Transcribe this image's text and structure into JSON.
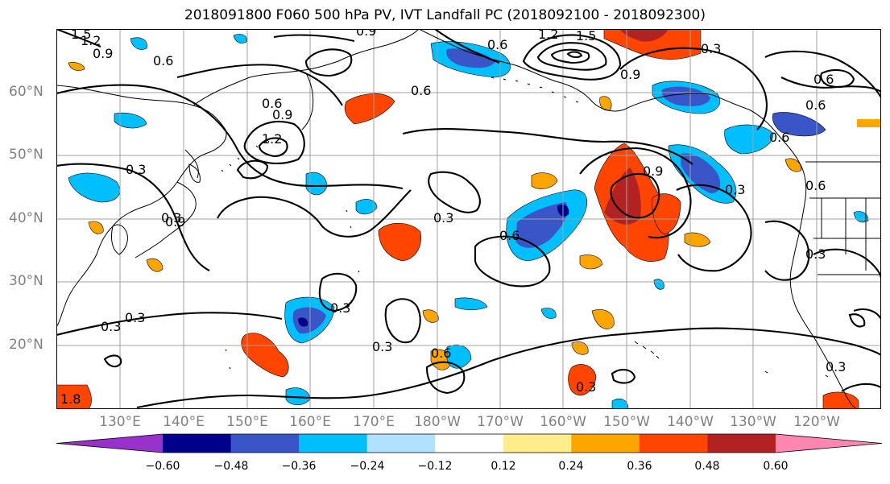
{
  "title": "2018091800 F060 500 hPa PV, IVT Landfall PC (2018092100 - 2018092300)",
  "map": {
    "region": "North Pacific",
    "lat_labels": [
      "60°N",
      "50°N",
      "40°N",
      "30°N",
      "20°N"
    ],
    "lon_labels": [
      "130°E",
      "140°E",
      "150°E",
      "160°E",
      "170°E",
      "180°W",
      "170°W",
      "160°W",
      "150°W",
      "140°W",
      "130°W",
      "120°W"
    ],
    "contour_levels": [
      "0.3",
      "0.6",
      "0.9",
      "1.2",
      "1.5"
    ],
    "contour_labels": [
      "0.3",
      "0.3",
      "0.3",
      "0.3",
      "0.3",
      "0.3",
      "0.3",
      "0.3",
      "0.3",
      "0.3",
      "0.3",
      "0.3",
      "0.6",
      "0.6",
      "0.6",
      "0.6",
      "0.6",
      "0.6",
      "0.6",
      "0.6",
      "0.6",
      "0.6",
      "0.9",
      "0.9",
      "0.9",
      "0.9",
      "0.9",
      "0.9",
      "1.2",
      "1.2",
      "1.2",
      "1.5",
      "1.5",
      "1.8"
    ]
  },
  "colorbar": {
    "ticks": [
      "−0.60",
      "−0.48",
      "−0.36",
      "−0.24",
      "−0.12",
      "0.12",
      "0.24",
      "0.36",
      "0.48",
      "0.60"
    ],
    "colors": [
      "#9932cc",
      "#00008b",
      "#3a55c8",
      "#00bfff",
      "#b0e2ff",
      "#ffffff",
      "#ffec8b",
      "#ffa500",
      "#ff4500",
      "#b22222",
      "#ff86b0"
    ]
  }
}
